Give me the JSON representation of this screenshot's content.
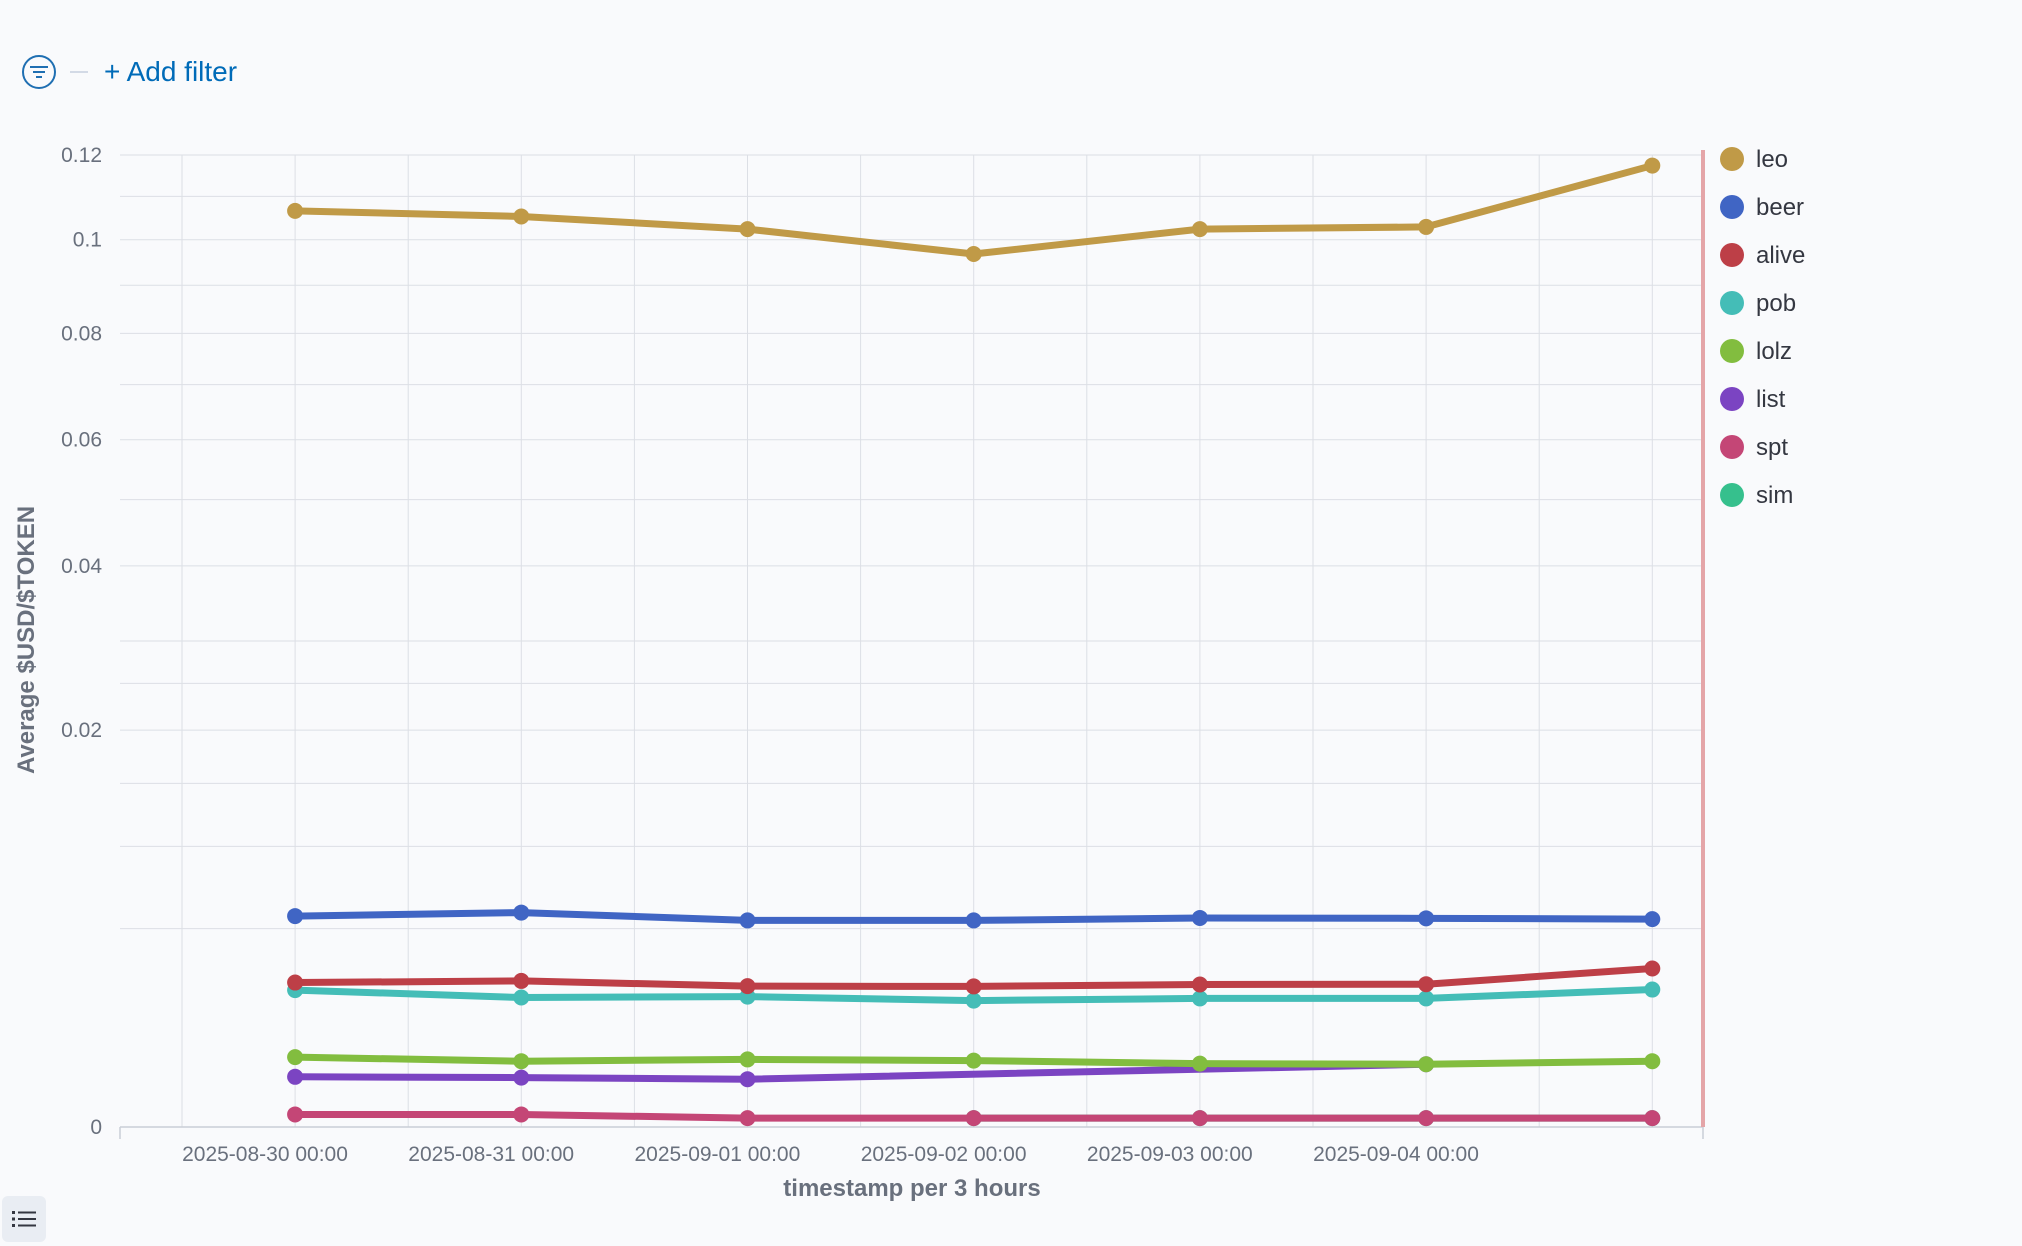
{
  "filter_bar": {
    "add_filter_label": "+ Add filter",
    "filter_icon": "filter-icon"
  },
  "legend_toggle_icon": "list-icon",
  "chart_data": {
    "type": "line",
    "xlabel": "timestamp per 3 hours",
    "ylabel": "Average $USD/$TOKEN",
    "x_tick_labels": [
      "2025-08-30 00:00",
      "2025-08-31 00:00",
      "2025-09-01 00:00",
      "2025-09-02 00:00",
      "2025-09-03 00:00",
      "2025-09-04 00:00"
    ],
    "x": [
      "2025-08-30 12:00",
      "2025-08-31 12:00",
      "2025-09-01 12:00",
      "2025-09-02 12:00",
      "2025-09-03 12:00",
      "2025-09-04 12:00",
      "2025-09-05 12:00"
    ],
    "y_scale": "sqrt",
    "y_ticks": [
      0,
      0.02,
      0.04,
      0.06,
      0.08,
      0.1,
      0.12
    ],
    "y_tick_labels": [
      "0",
      "0.02",
      "0.04",
      "0.06",
      "0.08",
      "0.1",
      "0.12"
    ],
    "ylim": [
      0,
      0.12
    ],
    "grid": true,
    "legend_position": "right",
    "series": [
      {
        "name": "leo",
        "color": "#c09a47",
        "values": [
          0.1066,
          0.1053,
          0.1024,
          0.0968,
          0.1024,
          0.1029,
          0.1174
        ]
      },
      {
        "name": "beer",
        "color": "#4065c4",
        "values": [
          0.00565,
          0.00584,
          0.00542,
          0.00542,
          0.00555,
          0.00553,
          0.00549
        ]
      },
      {
        "name": "alive",
        "color": "#bd3f47",
        "values": [
          0.00265,
          0.00271,
          0.00252,
          0.00251,
          0.00258,
          0.00259,
          0.00319
        ]
      },
      {
        "name": "pob",
        "color": "#44bdb7",
        "values": [
          0.00238,
          0.00213,
          0.00216,
          0.00203,
          0.0021,
          0.0021,
          0.0024
        ]
      },
      {
        "name": "lolz",
        "color": "#82bd3f",
        "values": [
          0.00062,
          0.00055,
          0.00058,
          0.00056,
          0.00051,
          0.0005,
          0.00055
        ]
      },
      {
        "name": "list",
        "color": "#7b44c2",
        "values": [
          0.00032,
          0.00031,
          0.00029,
          null,
          null,
          0.0005,
          null
        ]
      },
      {
        "name": "spt",
        "color": "#c44676",
        "values": [
          2e-05,
          2e-05,
          1e-05,
          1e-05,
          1e-05,
          1e-05,
          1e-05
        ]
      },
      {
        "name": "sim",
        "color": "#36c08d",
        "values": [
          null,
          null,
          null,
          1e-05,
          1e-05,
          1e-05,
          1e-05
        ]
      }
    ]
  }
}
